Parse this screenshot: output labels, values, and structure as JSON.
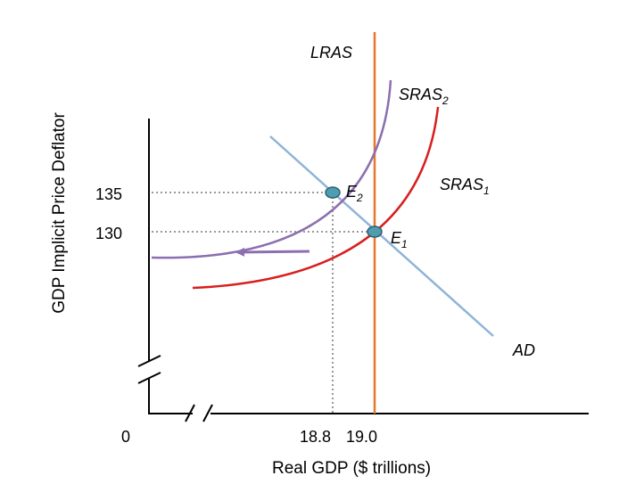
{
  "chart_data": {
    "type": "line",
    "title": "",
    "xlabel": "Real GDP ($ trillions)",
    "ylabel": "GDP Implicit Price Deflator",
    "origin_label": "0",
    "axis_breaks": {
      "x": true,
      "y": true
    },
    "x_ticks": [
      {
        "value": 18.8,
        "label": "18.8"
      },
      {
        "value": 19.0,
        "label": "19.0"
      }
    ],
    "y_ticks": [
      {
        "value": 135,
        "label": "135"
      },
      {
        "value": 130,
        "label": "130"
      }
    ],
    "curves": [
      {
        "id": "lras",
        "label": "LRAS",
        "type": "vertical",
        "x": 19.0,
        "color": "#e8772e"
      },
      {
        "id": "ad",
        "label": "AD",
        "type": "line",
        "color": "#8eb4d8"
      },
      {
        "id": "sras1",
        "label": "SRAS",
        "label_sub": "1",
        "type": "curve",
        "color": "#d91e1e"
      },
      {
        "id": "sras2",
        "label": "SRAS",
        "label_sub": "2",
        "type": "curve",
        "color": "#8b6fb0"
      }
    ],
    "equilibria": [
      {
        "id": "e1",
        "label": "E",
        "label_sub": "1",
        "x": 19.0,
        "y": 130
      },
      {
        "id": "e2",
        "label": "E",
        "label_sub": "2",
        "x": 18.8,
        "y": 135
      }
    ],
    "shift_arrow": {
      "from": "SRAS1",
      "to": "SRAS2",
      "direction": "left",
      "color": "#8b6fb0"
    },
    "colors": {
      "point_fill": "#4f9db0",
      "point_stroke": "#2d6070",
      "guide": "#999999"
    }
  }
}
